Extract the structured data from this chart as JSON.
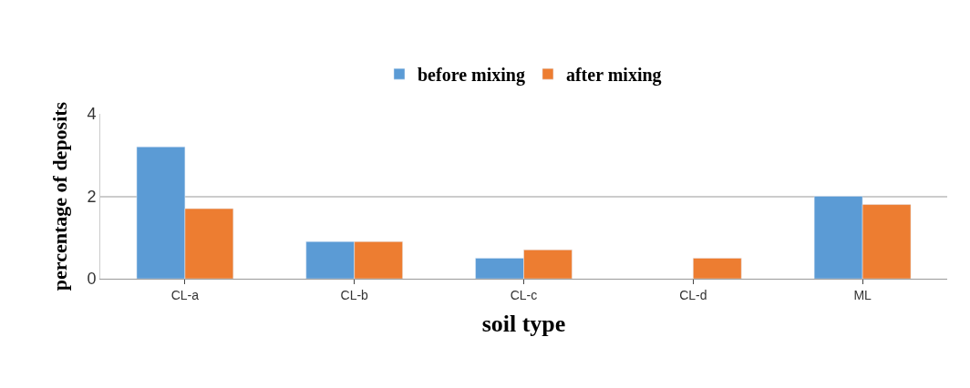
{
  "chart_data": {
    "type": "bar",
    "xlabel": "soil type",
    "ylabel": "percentage of deposits",
    "categories": [
      "CL-a",
      "CL-b",
      "CL-c",
      "CL-d",
      "ML"
    ],
    "series": [
      {
        "name": "before mixing",
        "color": "#5b9bd5",
        "values": [
          3.2,
          0.9,
          0.5,
          null,
          2.0
        ]
      },
      {
        "name": "after mixing",
        "color": "#ed7d31",
        "values": [
          1.7,
          0.9,
          0.7,
          0.5,
          1.8
        ]
      }
    ],
    "ylim": [
      0,
      4
    ],
    "yticks": [
      0,
      2,
      4
    ],
    "grid": "y",
    "legend": "top"
  }
}
